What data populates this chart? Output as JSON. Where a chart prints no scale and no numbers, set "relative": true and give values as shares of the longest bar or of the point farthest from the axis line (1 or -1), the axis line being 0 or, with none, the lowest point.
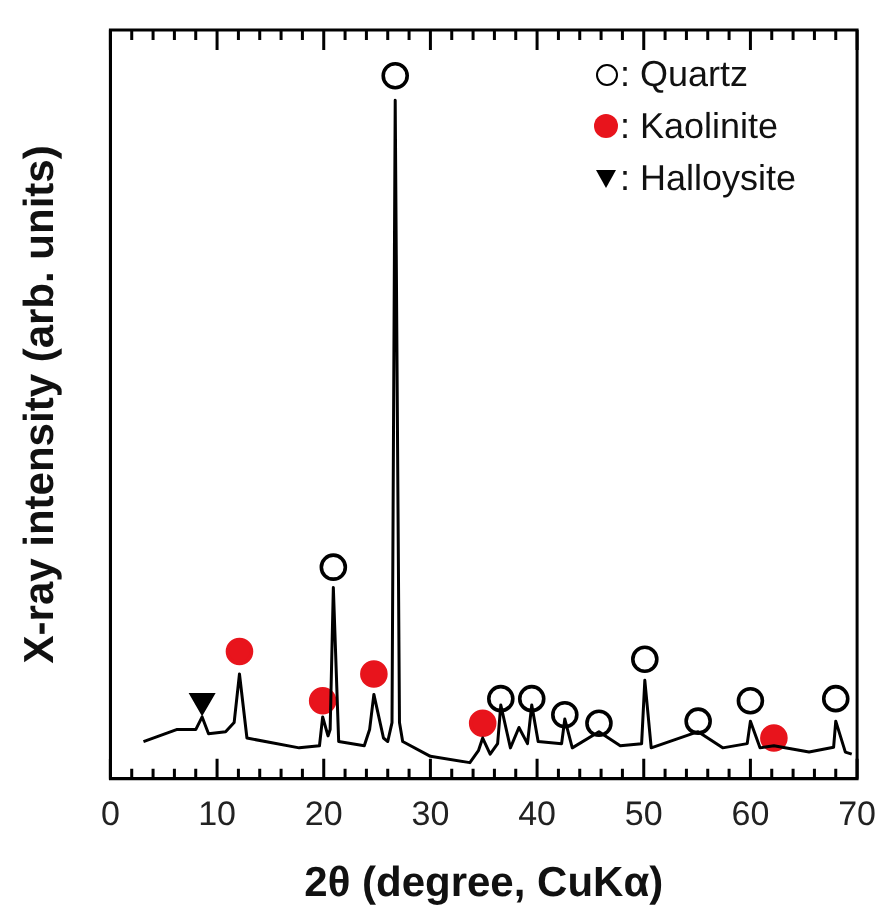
{
  "chart_data": {
    "type": "line",
    "xlabel": "2θ (degree, CuKα)",
    "ylabel": "X-ray intensity (arb. units)",
    "relative": true,
    "legend": "top right",
    "grid": false,
    "xlim": [
      0,
      70
    ],
    "xticks": [
      0,
      {
        "value": 2,
        "label": null
      },
      {
        "value": 4,
        "label": null
      },
      {
        "value": 6,
        "label": null
      },
      {
        "value": 8,
        "label": null
      },
      10,
      {
        "value": 12,
        "label": null
      },
      {
        "value": 14,
        "label": null
      },
      {
        "value": 16,
        "label": null
      },
      {
        "value": 18,
        "label": null
      },
      20,
      {
        "value": 22,
        "label": null
      },
      {
        "value": 24,
        "label": null
      },
      {
        "value": 26,
        "label": null
      },
      {
        "value": 28,
        "label": null
      },
      30,
      {
        "value": 32,
        "label": null
      },
      {
        "value": 34,
        "label": null
      },
      {
        "value": 36,
        "label": null
      },
      {
        "value": 38,
        "label": null
      },
      40,
      {
        "value": 42,
        "label": null
      },
      {
        "value": 44,
        "label": null
      },
      {
        "value": 46,
        "label": null
      },
      {
        "value": 48,
        "label": null
      },
      50,
      {
        "value": 52,
        "label": null
      },
      {
        "value": 54,
        "label": null
      },
      {
        "value": 56,
        "label": null
      },
      {
        "value": 58,
        "label": null
      },
      60,
      {
        "value": 62,
        "label": null
      },
      {
        "value": 64,
        "label": null
      },
      {
        "value": 66,
        "label": null
      },
      {
        "value": 68,
        "label": null
      },
      70
    ],
    "series": [
      {
        "color": "#000000",
        "marker": "none",
        "line_style": "solid",
        "x": [
          3.1,
          6.2,
          8.0,
          8.6,
          9.2,
          10.8,
          11.6,
          12.1,
          12.8,
          17.7,
          19.6,
          19.9,
          20.4,
          20.6,
          20.9,
          21.4,
          23.8,
          24.3,
          24.7,
          25.6,
          26.0,
          26.4,
          26.7,
          27.1,
          27.4,
          30,
          33.7,
          34.5,
          34.9,
          35.6,
          36.3,
          36.6,
          37.5,
          38.3,
          39.1,
          39.5,
          40.1,
          42.3,
          42.6,
          43.3,
          45.8,
          47.8,
          49.8,
          50.1,
          50.7,
          55.1,
          57.4,
          59.7,
          60.0,
          60.9,
          62.2,
          65.5,
          67.8,
          68.0,
          68.9,
          69.5
        ],
        "values": [
          0.053,
          0.07,
          0.07,
          0.088,
          0.064,
          0.067,
          0.08,
          0.149,
          0.058,
          0.044,
          0.047,
          0.088,
          0.061,
          0.07,
          0.272,
          0.053,
          0.047,
          0.07,
          0.12,
          0.058,
          0.053,
          0.08,
          0.965,
          0.08,
          0.053,
          0.032,
          0.023,
          0.04,
          0.058,
          0.035,
          0.05,
          0.105,
          0.044,
          0.073,
          0.05,
          0.105,
          0.053,
          0.05,
          0.085,
          0.044,
          0.067,
          0.047,
          0.05,
          0.14,
          0.044,
          0.067,
          0.044,
          0.05,
          0.082,
          0.044,
          0.047,
          0.038,
          0.045,
          0.082,
          0.038,
          0.035
        ]
      },
      {
        "type": "scatter",
        "name": ": Quartz",
        "color": "#000000",
        "marker": "circle",
        "x": [
          20.9,
          26.7,
          36.6,
          39.5,
          42.6,
          45.8,
          50.1,
          55.1,
          60.0,
          68.0
        ],
        "values": [
          0.301,
          1.0,
          0.114,
          0.114,
          0.091,
          0.079,
          0.17,
          0.082,
          0.111,
          0.114
        ]
      },
      {
        "type": "scatter",
        "name": ": Kaolinite",
        "color": "#e8141c",
        "marker": "circle",
        "x": [
          12.1,
          19.9,
          24.7,
          34.9,
          62.2
        ],
        "values": [
          0.181,
          0.111,
          0.149,
          0.079,
          0.058
        ]
      },
      {
        "type": "scatter",
        "name": ": Halloysite",
        "color": "#000000",
        "marker": "triangle",
        "x": [
          8.6
        ],
        "values": [
          0.111
        ]
      }
    ]
  }
}
